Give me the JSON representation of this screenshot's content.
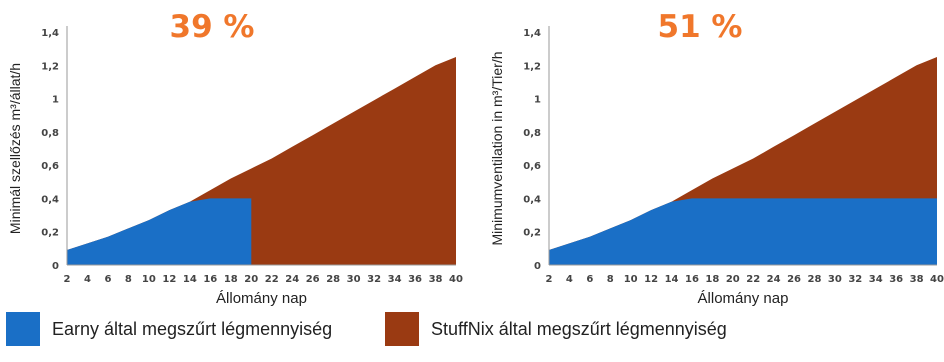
{
  "chart_data": [
    {
      "type": "area",
      "annotation": "39 %",
      "ylabel": "Minimál szellőzés m³/állat/h",
      "xlabel": "Állomány nap",
      "x": [
        2,
        4,
        6,
        8,
        10,
        12,
        14,
        16,
        18,
        20,
        22,
        24,
        26,
        28,
        30,
        32,
        34,
        36,
        38,
        40
      ],
      "xlim": [
        2,
        40
      ],
      "ylim": [
        0,
        1.4
      ],
      "yticks": [
        "0",
        "0,2",
        "0,4",
        "0,6",
        "0,8",
        "1",
        "1,2",
        "1,4"
      ],
      "series": [
        {
          "name": "StuffNix által megszűrt légmennyiség",
          "color": "#9a3a12",
          "values": [
            0.09,
            0.13,
            0.17,
            0.22,
            0.27,
            0.33,
            0.38,
            0.45,
            0.52,
            0.58,
            0.64,
            0.71,
            0.78,
            0.85,
            0.92,
            0.99,
            1.06,
            1.13,
            1.2,
            1.25
          ]
        },
        {
          "name": "Earny által megszűrt légmennyiség",
          "color": "#1a6fc6",
          "values": [
            0.09,
            0.13,
            0.17,
            0.22,
            0.27,
            0.33,
            0.38,
            0.4,
            0.4,
            0.4,
            null,
            null,
            null,
            null,
            null,
            null,
            null,
            null,
            null,
            null
          ]
        }
      ]
    },
    {
      "type": "area",
      "annotation": "51 %",
      "ylabel": "Minimumventilation in m³/Tier/h",
      "xlabel": "Állomány nap",
      "x": [
        2,
        4,
        6,
        8,
        10,
        12,
        14,
        16,
        18,
        20,
        22,
        24,
        26,
        28,
        30,
        32,
        34,
        36,
        38,
        40
      ],
      "xlim": [
        2,
        40
      ],
      "ylim": [
        0,
        1.4
      ],
      "yticks": [
        "0",
        "0,2",
        "0,4",
        "0,6",
        "0,8",
        "1",
        "1,2",
        "1,4"
      ],
      "series": [
        {
          "name": "StuffNix által megszűrt légmennyiség",
          "color": "#9a3a12",
          "values": [
            0.09,
            0.13,
            0.17,
            0.22,
            0.27,
            0.33,
            0.38,
            0.45,
            0.52,
            0.58,
            0.64,
            0.71,
            0.78,
            0.85,
            0.92,
            0.99,
            1.06,
            1.13,
            1.2,
            1.25
          ]
        },
        {
          "name": "Earny által megszűrt légmennyiség",
          "color": "#1a6fc6",
          "values": [
            0.09,
            0.13,
            0.17,
            0.22,
            0.27,
            0.33,
            0.38,
            0.4,
            0.4,
            0.4,
            0.4,
            0.4,
            0.4,
            0.4,
            0.4,
            0.4,
            0.4,
            0.4,
            0.4,
            0.4
          ]
        }
      ]
    }
  ],
  "legend": [
    {
      "label": "Earny által megszűrt légmennyiség",
      "color": "#1a6fc6"
    },
    {
      "label": "StuffNix által megszűrt légmennyiség",
      "color": "#9a3a12"
    }
  ]
}
